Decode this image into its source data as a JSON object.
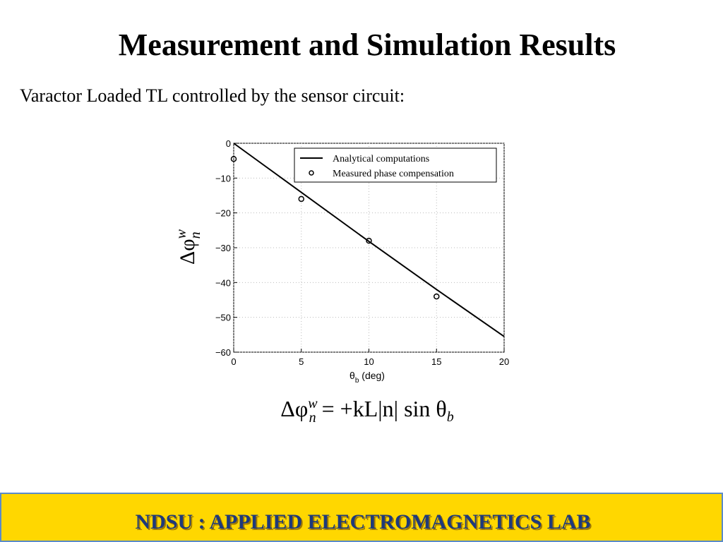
{
  "slide": {
    "title": "Measurement and Simulation Results",
    "subtitle": "Varactor Loaded TL controlled by the sensor circuit:",
    "equation": {
      "lhs": "Δφ",
      "sup": "w",
      "sub": "n",
      "rhs": " = +kL|n| sin θ",
      "rhs_sub": "b"
    },
    "footer": "NDSU : APPLIED ELECTROMAGNETICS LAB"
  },
  "chart_data": {
    "type": "line",
    "xlabel": {
      "base": "θ",
      "sub": "b",
      "rest": " (deg)"
    },
    "ylabel": {
      "base": "Δφ",
      "sub": "n",
      "sup": "w"
    },
    "xlim": [
      0,
      20
    ],
    "xticks": [
      0,
      5,
      10,
      15,
      20
    ],
    "ylim": [
      -60,
      0
    ],
    "yticks": [
      {
        "value": -60,
        "label": "−60"
      },
      {
        "value": -50,
        "label": "−50"
      },
      {
        "value": -40,
        "label": "−40"
      },
      {
        "value": -30,
        "label": "−30"
      },
      {
        "value": -20,
        "label": "−20"
      },
      {
        "value": -10,
        "label": "−10"
      },
      0
    ],
    "grid": true,
    "legend": "upper right",
    "series": [
      {
        "name": "Analytical computations",
        "type": "line",
        "color": "#000000",
        "x": [
          0,
          5,
          10,
          15,
          20
        ],
        "values": [
          0,
          -14.1,
          -28.2,
          -42,
          -55.5
        ]
      },
      {
        "name": "Measured phase compensation",
        "type": "scatter",
        "color": "#000000",
        "x": [
          0,
          5,
          10,
          15
        ],
        "values": [
          -4.5,
          -16,
          -28,
          -44
        ]
      }
    ]
  }
}
